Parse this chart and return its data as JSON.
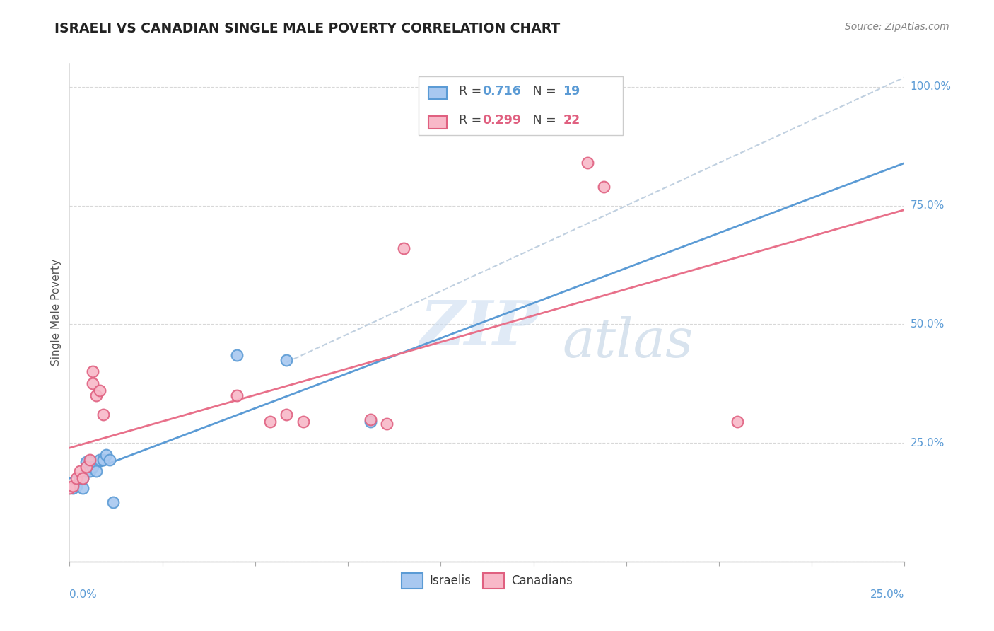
{
  "title": "ISRAELI VS CANADIAN SINGLE MALE POVERTY CORRELATION CHART",
  "source": "Source: ZipAtlas.com",
  "ylabel": "Single Male Poverty",
  "legend_israelis_R": "0.716",
  "legend_israelis_N": "19",
  "legend_canadians_R": "0.299",
  "legend_canadians_N": "22",
  "color_israelis_fill": "#a8c8f0",
  "color_israelis_edge": "#5b9bd5",
  "color_canadians_fill": "#f8b8c8",
  "color_canadians_edge": "#e06080",
  "color_israelis_line": "#5b9bd5",
  "color_canadians_line": "#e8708a",
  "color_dashed": "#c0d0e0",
  "israelis_x": [
    0.001,
    0.002,
    0.003,
    0.004,
    0.004,
    0.005,
    0.005,
    0.006,
    0.006,
    0.007,
    0.008,
    0.009,
    0.01,
    0.011,
    0.012,
    0.013,
    0.05,
    0.065,
    0.09
  ],
  "israelis_y": [
    0.155,
    0.16,
    0.175,
    0.155,
    0.175,
    0.19,
    0.21,
    0.19,
    0.21,
    0.2,
    0.19,
    0.215,
    0.215,
    0.225,
    0.215,
    0.125,
    0.435,
    0.425,
    0.295
  ],
  "canadians_x": [
    0.0,
    0.001,
    0.002,
    0.003,
    0.004,
    0.005,
    0.006,
    0.007,
    0.007,
    0.008,
    0.009,
    0.01,
    0.05,
    0.06,
    0.065,
    0.07,
    0.09,
    0.095,
    0.1,
    0.155,
    0.16,
    0.2
  ],
  "canadians_y": [
    0.155,
    0.16,
    0.175,
    0.19,
    0.175,
    0.2,
    0.215,
    0.4,
    0.375,
    0.35,
    0.36,
    0.31,
    0.35,
    0.295,
    0.31,
    0.295,
    0.3,
    0.29,
    0.66,
    0.84,
    0.79,
    0.295
  ],
  "xmin": 0.0,
  "xmax": 0.25,
  "ymin": 0.0,
  "ymax": 1.05,
  "ytick_vals": [
    0.0,
    0.25,
    0.5,
    0.75,
    1.0
  ],
  "ytick_labels": [
    "",
    "25.0%",
    "50.0%",
    "75.0%",
    "100.0%"
  ],
  "watermark_zip": "ZIP",
  "watermark_atlas": "atlas",
  "background_color": "#ffffff"
}
